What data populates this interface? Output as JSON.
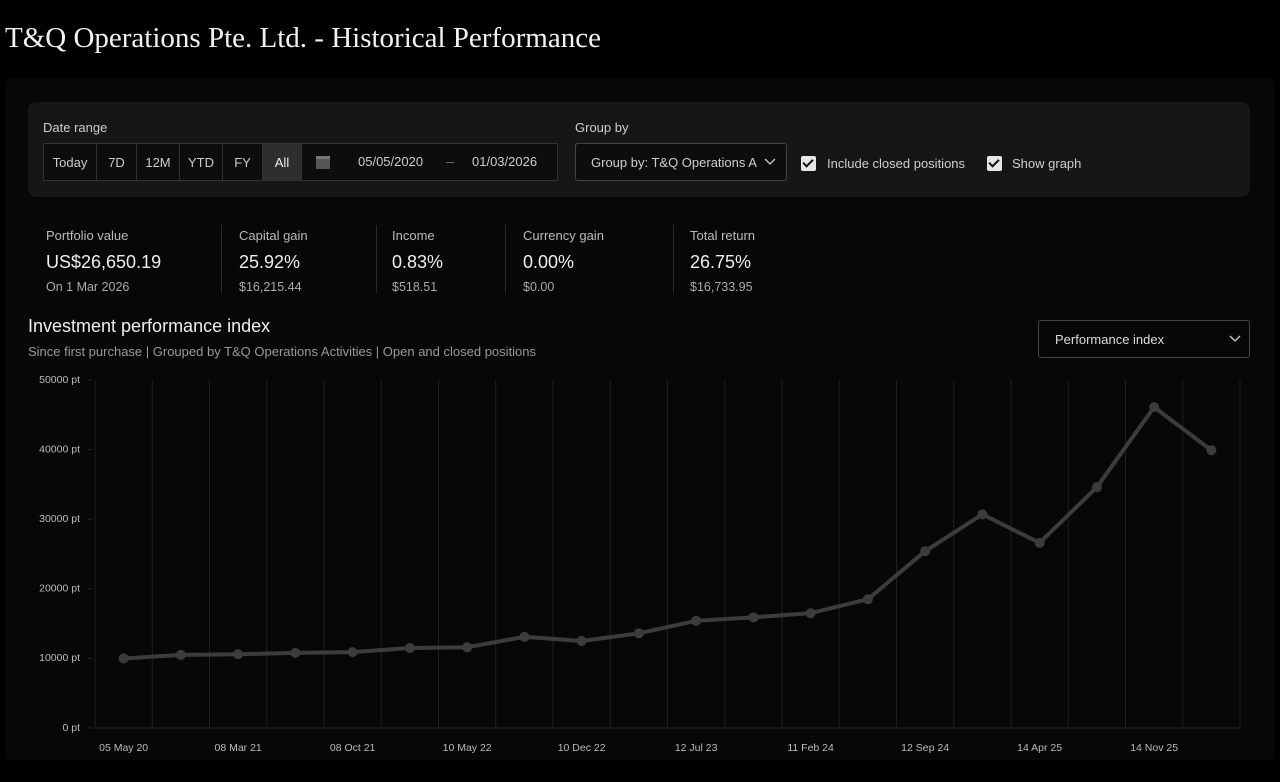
{
  "header": {
    "title": "T&Q Operations Pte. Ltd. - Historical Performance"
  },
  "filters": {
    "date_range_label": "Date range",
    "range_buttons": [
      "Today",
      "7D",
      "12M",
      "YTD",
      "FY",
      "All"
    ],
    "start_date": "05/05/2020",
    "end_date": "01/03/2026",
    "group_by_label": "Group by",
    "group_by_value": "Group by: T&Q Operations A",
    "include_closed": "Include closed positions",
    "show_graph": "Show graph"
  },
  "stats": [
    {
      "label": "Portfolio value",
      "value": "US$26,650.19",
      "sub": "On 1 Mar 2026"
    },
    {
      "label": "Capital gain",
      "value": "25.92%",
      "sub": "$16,215.44"
    },
    {
      "label": "Income",
      "value": "0.83%",
      "sub": "$518.51"
    },
    {
      "label": "Currency gain",
      "value": "0.00%",
      "sub": "$0.00"
    },
    {
      "label": "Total return",
      "value": "26.75%",
      "sub": "$16,733.95"
    }
  ],
  "metric_dropdown": "Performance index",
  "chart_data": {
    "type": "line",
    "title": "Investment performance index",
    "subtitle": "Since first purchase | Grouped by T&Q Operations Activities | Open and closed positions",
    "categories": [
      "05 May 20",
      null,
      "08 Mar 21",
      null,
      "08 Oct 21",
      null,
      "10 May 22",
      null,
      "10 Dec 22",
      null,
      "12 Jul 23",
      null,
      "11 Feb 24",
      null,
      "12 Sep 24",
      null,
      "14 Apr 25",
      null,
      "14 Nov 25",
      null
    ],
    "series": [
      {
        "name": "Performance index",
        "color": "#3c3c3c",
        "values": [
          10000,
          10500,
          10600,
          10800,
          10900,
          11500,
          11600,
          13100,
          12500,
          13600,
          15400,
          15900,
          16500,
          18500,
          25400,
          30700,
          26600,
          34600,
          46100,
          39900
        ]
      }
    ],
    "ylim": [
      0,
      50000
    ],
    "yticks": [
      {
        "value": 0,
        "label": "0 pt"
      },
      {
        "value": 10000,
        "label": "10000 pt"
      },
      {
        "value": 20000,
        "label": "20000 pt"
      },
      {
        "value": 30000,
        "label": "30000 pt"
      },
      {
        "value": 40000,
        "label": "40000 pt"
      },
      {
        "value": 50000,
        "label": "50000 pt"
      }
    ]
  }
}
